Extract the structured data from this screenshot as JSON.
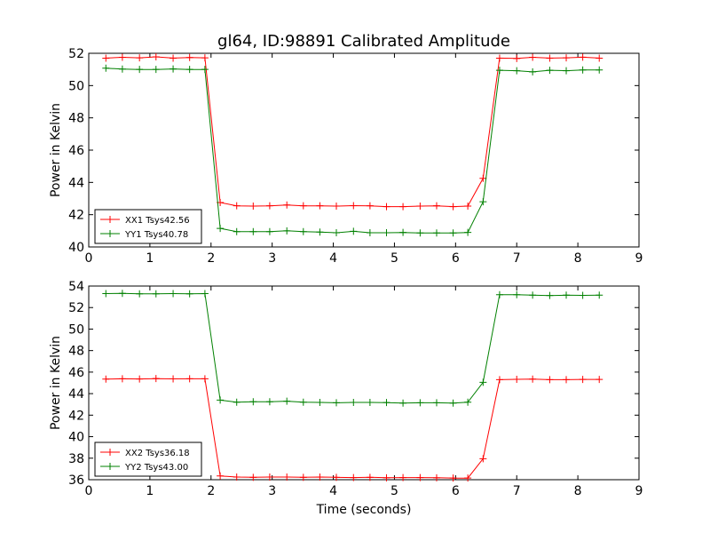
{
  "figure": {
    "title": "gl64, ID:98891 Calibrated Amplitude",
    "xlabel": "Time (seconds)"
  },
  "chart_data": [
    {
      "type": "line",
      "title": "gl64, ID:98891 Calibrated Amplitude",
      "xlabel": "",
      "ylabel": "Power in Kelvin",
      "xlim": [
        0,
        9
      ],
      "ylim": [
        40,
        52
      ],
      "xticks": [
        0,
        1,
        2,
        3,
        4,
        5,
        6,
        7,
        8,
        9
      ],
      "yticks": [
        40,
        42,
        44,
        46,
        48,
        50,
        52
      ],
      "grid": false,
      "legend_position": "lower-left",
      "x": [
        0.28,
        0.55,
        0.83,
        1.1,
        1.38,
        1.65,
        1.9,
        2.15,
        2.42,
        2.69,
        2.96,
        3.24,
        3.51,
        3.78,
        4.05,
        4.33,
        4.6,
        4.87,
        5.14,
        5.42,
        5.69,
        5.96,
        6.2,
        6.45,
        6.72,
        7.0,
        7.26,
        7.54,
        7.81,
        8.08,
        8.35
      ],
      "series": [
        {
          "name": "XX1 Tsys42.56",
          "color": "#ff0000",
          "values": [
            51.7,
            51.75,
            51.72,
            51.78,
            51.7,
            51.74,
            51.72,
            42.75,
            42.55,
            42.53,
            42.55,
            42.6,
            42.55,
            42.55,
            42.53,
            42.56,
            42.55,
            42.5,
            42.5,
            42.53,
            42.55,
            42.5,
            42.53,
            44.25,
            51.7,
            51.68,
            51.75,
            51.7,
            51.72,
            51.76,
            51.7
          ]
        },
        {
          "name": "YY1 Tsys40.78",
          "color": "#008000",
          "values": [
            51.08,
            51.02,
            51.0,
            51.0,
            51.03,
            51.0,
            51.0,
            41.15,
            40.95,
            40.95,
            40.95,
            41.0,
            40.95,
            40.92,
            40.88,
            40.97,
            40.88,
            40.88,
            40.9,
            40.87,
            40.87,
            40.87,
            40.9,
            42.8,
            50.95,
            50.92,
            50.85,
            50.95,
            50.92,
            50.97,
            50.97
          ]
        }
      ]
    },
    {
      "type": "line",
      "title": "",
      "xlabel": "Time (seconds)",
      "ylabel": "Power in Kelvin",
      "xlim": [
        0,
        9
      ],
      "ylim": [
        36,
        54
      ],
      "xticks": [
        0,
        1,
        2,
        3,
        4,
        5,
        6,
        7,
        8,
        9
      ],
      "yticks": [
        36,
        38,
        40,
        42,
        44,
        46,
        48,
        50,
        52,
        54
      ],
      "grid": false,
      "legend_position": "lower-left",
      "x": [
        0.28,
        0.55,
        0.83,
        1.1,
        1.38,
        1.65,
        1.9,
        2.15,
        2.42,
        2.69,
        2.96,
        3.24,
        3.51,
        3.78,
        4.05,
        4.33,
        4.6,
        4.87,
        5.14,
        5.42,
        5.69,
        5.96,
        6.2,
        6.45,
        6.72,
        7.0,
        7.26,
        7.54,
        7.81,
        8.08,
        8.35
      ],
      "series": [
        {
          "name": "XX2 Tsys36.18",
          "color": "#ff0000",
          "values": [
            45.35,
            45.38,
            45.36,
            45.4,
            45.37,
            45.38,
            45.38,
            36.35,
            36.25,
            36.22,
            36.25,
            36.25,
            36.22,
            36.25,
            36.22,
            36.2,
            36.22,
            36.18,
            36.2,
            36.2,
            36.18,
            36.15,
            36.15,
            37.95,
            45.3,
            45.33,
            45.35,
            45.3,
            45.3,
            45.32,
            45.32
          ]
        },
        {
          "name": "YY2 Tsys43.00",
          "color": "#008000",
          "values": [
            53.3,
            53.32,
            53.28,
            53.28,
            53.3,
            53.28,
            53.3,
            43.4,
            43.2,
            43.25,
            43.25,
            43.3,
            43.2,
            43.18,
            43.15,
            43.18,
            43.18,
            43.17,
            43.12,
            43.15,
            43.15,
            43.12,
            43.2,
            45.05,
            53.2,
            53.2,
            53.15,
            53.12,
            53.15,
            53.13,
            53.15
          ]
        }
      ]
    }
  ]
}
